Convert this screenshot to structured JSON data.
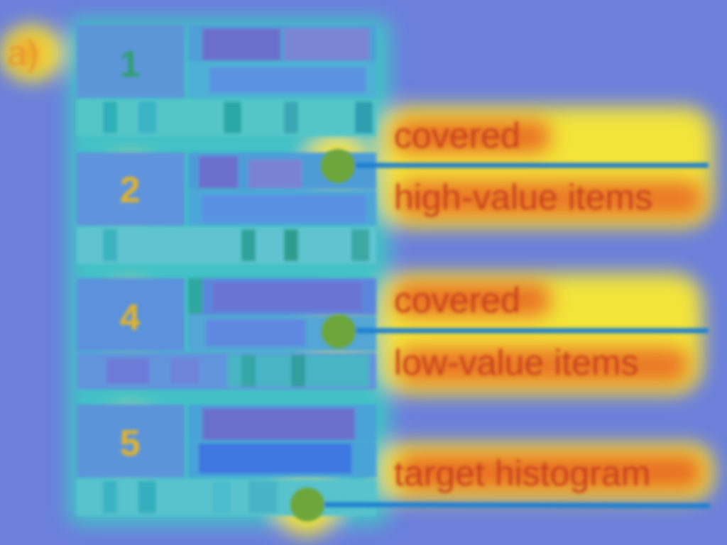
{
  "panel_label": "a)",
  "rows": [
    {
      "number": "1"
    },
    {
      "number": "2"
    },
    {
      "number": "4"
    },
    {
      "number": "5"
    }
  ],
  "annotations": [
    {
      "line1": "covered",
      "line2": "high-value items"
    },
    {
      "line1": "covered",
      "line2": "low-value items"
    },
    {
      "line1": "target histogram",
      "line2": ""
    }
  ],
  "colors": {
    "background": "#6b7fdb",
    "heat_core": "#e85a1e",
    "heat_mid": "#f3e43a",
    "heat_outer": "#3ec9c4",
    "marker": "#6da63a",
    "leader_line": "#1f7fd0",
    "label_text": "#c8431e",
    "number_text": "#e1b32f"
  }
}
